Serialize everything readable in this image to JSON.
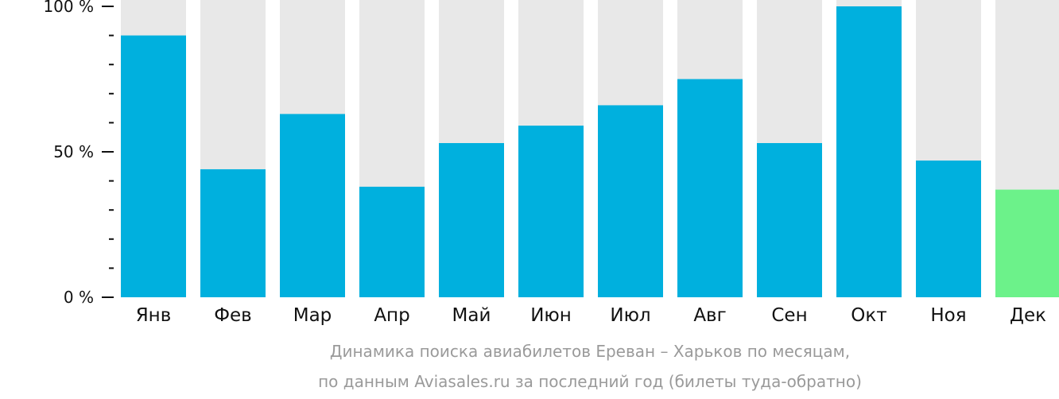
{
  "chart_data": {
    "type": "bar",
    "categories": [
      "Янв",
      "Фев",
      "Мар",
      "Апр",
      "Май",
      "Июн",
      "Июл",
      "Авг",
      "Сен",
      "Окт",
      "Ноя",
      "Дек"
    ],
    "values": [
      90,
      44,
      63,
      38,
      53,
      59,
      66,
      75,
      53,
      100,
      47,
      37
    ],
    "ylim": [
      0,
      100
    ],
    "y_tick_labels": [
      "0 %",
      "50 %",
      "100 %"
    ],
    "y_tick_values": [
      0,
      50,
      100
    ],
    "highlight_index": 11,
    "colors": {
      "bar": "#00b0de",
      "highlight": "#6cf28a",
      "background_bar": "#e8e8e8",
      "axis": "#111111"
    }
  },
  "caption": {
    "line1": "Динамика поиска авиабилетов Ереван – Харьков по месяцам,",
    "line2": "по данным Aviasales.ru за последний год (билеты туда-обратно)"
  }
}
